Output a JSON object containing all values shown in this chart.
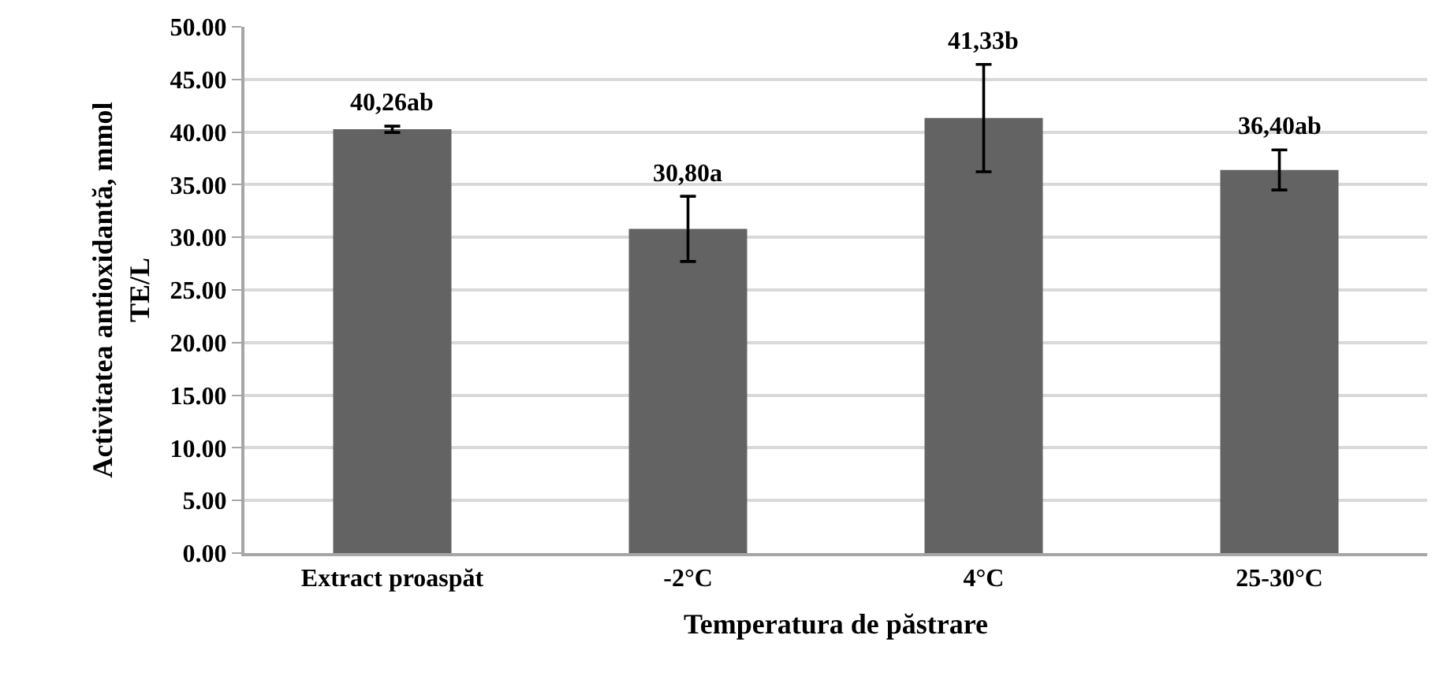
{
  "chart_data": {
    "type": "bar",
    "xlabel": "Temperatura de păstrare",
    "ylabel": "Activitatea antioxidantă, mmol TE/L",
    "categories": [
      "Extract proaspăt",
      "-2°C",
      "4°C",
      "25-30°C"
    ],
    "values": [
      40.26,
      30.8,
      41.33,
      36.4
    ],
    "errors": [
      0.3,
      3.1,
      5.1,
      1.9
    ],
    "value_labels": [
      "40,26ab",
      "30,80a",
      "41,33b",
      "36,40ab"
    ],
    "color": "#636363",
    "ylim": [
      0,
      50
    ],
    "yticks": [
      {
        "value": 0,
        "label": "0.00"
      },
      {
        "value": 5,
        "label": "5.00"
      },
      {
        "value": 10,
        "label": "10.00"
      },
      {
        "value": 15,
        "label": "15.00"
      },
      {
        "value": 20,
        "label": "20.00"
      },
      {
        "value": 25,
        "label": "25.00"
      },
      {
        "value": 30,
        "label": "30.00"
      },
      {
        "value": 35,
        "label": "35.00"
      },
      {
        "value": 40,
        "label": "40.00"
      },
      {
        "value": 45,
        "label": "45.00"
      },
      {
        "value": 50,
        "label": "50.00"
      }
    ],
    "grid": "y"
  }
}
